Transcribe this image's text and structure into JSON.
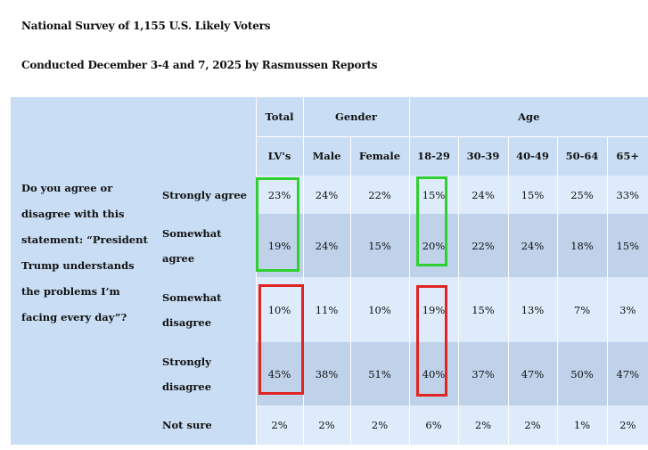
{
  "heading": {
    "line1": "National Survey of 1,155 U.S. Likely Voters",
    "line2": "Conducted December 3-4 and 7, 2025 by Rasmussen Reports"
  },
  "table": {
    "groups": {
      "total": "Total",
      "gender": "Gender",
      "age": "Age"
    },
    "columns": [
      "LV's",
      "Male",
      "Female",
      "18-29",
      "30-39",
      "40-49",
      "50-64",
      "65+"
    ],
    "question": "Do you agree or disagree with this statement: “President Trump understands the problems I’m facing every day”?",
    "rows": [
      {
        "label": "Strongly agree",
        "values": [
          "23%",
          "24%",
          "22%",
          "15%",
          "24%",
          "15%",
          "25%",
          "33%"
        ]
      },
      {
        "label": "Somewhat agree",
        "values": [
          "19%",
          "24%",
          "15%",
          "20%",
          "22%",
          "24%",
          "18%",
          "15%"
        ]
      },
      {
        "label": "Somewhat disagree",
        "values": [
          "10%",
          "11%",
          "10%",
          "19%",
          "15%",
          "13%",
          "7%",
          "3%"
        ]
      },
      {
        "label": "Strongly disagree",
        "values": [
          "45%",
          "38%",
          "51%",
          "40%",
          "37%",
          "47%",
          "50%",
          "47%"
        ]
      },
      {
        "label": "Not sure",
        "values": [
          "2%",
          "2%",
          "2%",
          "6%",
          "2%",
          "2%",
          "1%",
          "2%"
        ]
      }
    ]
  },
  "highlight_colors": {
    "agree": "#2fd02f",
    "disagree": "#e02424"
  }
}
